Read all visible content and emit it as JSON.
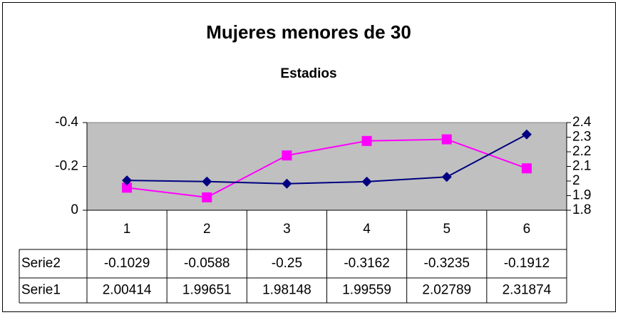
{
  "chart_data": {
    "type": "line",
    "title": "Mujeres menores de 30",
    "subtitle": "Estadios",
    "categories": [
      1,
      2,
      3,
      4,
      5,
      6
    ],
    "series": [
      {
        "name": "Serie2",
        "color": "#ff00ff",
        "values": [
          -0.1029,
          -0.0588,
          -0.25,
          -0.3162,
          -0.3235,
          -0.1912
        ]
      },
      {
        "name": "Serie1",
        "color": "#000080",
        "axis": "y2",
        "values": [
          2.00414,
          1.99651,
          1.98148,
          1.99559,
          2.02789,
          2.31874
        ]
      }
    ],
    "ylim": [
      0,
      -0.4
    ],
    "yticks": [
      0,
      -0.2,
      -0.4
    ],
    "y2lim": [
      1.8,
      2.4
    ],
    "y2ticks": [
      1.8,
      1.9,
      2,
      2.1,
      2.2,
      2.3,
      2.4
    ],
    "grid": false
  }
}
